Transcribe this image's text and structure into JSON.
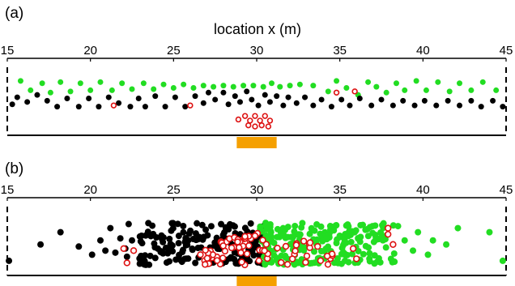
{
  "chart_data": [
    {
      "type": "scatter",
      "panel_label": "(a)",
      "xlabel": "location x (m)",
      "xlim": [
        15,
        45
      ],
      "xticks": [
        15,
        20,
        25,
        30,
        35,
        40,
        45
      ],
      "source_bar": {
        "x_start": 28.8,
        "x_end": 31.2,
        "color": "#f5a000"
      },
      "series": [
        {
          "style": "filled",
          "color": "#22dd22",
          "points": [
            [
              15.8,
              1.2
            ],
            [
              16.4,
              0.8
            ],
            [
              17.1,
              1.1
            ],
            [
              17.6,
              0.7
            ],
            [
              18.2,
              1.15
            ],
            [
              18.8,
              0.75
            ],
            [
              19.4,
              1.1
            ],
            [
              20.0,
              0.8
            ],
            [
              20.6,
              1.15
            ],
            [
              21.3,
              0.8
            ],
            [
              21.9,
              1.1
            ],
            [
              22.5,
              0.85
            ],
            [
              23.2,
              1.1
            ],
            [
              23.8,
              0.85
            ],
            [
              24.4,
              1.05
            ],
            [
              25.0,
              0.9
            ],
            [
              25.6,
              1.05
            ],
            [
              26.2,
              0.9
            ],
            [
              26.8,
              1.0
            ],
            [
              27.4,
              0.95
            ],
            [
              28.0,
              1.0
            ],
            [
              28.6,
              0.95
            ],
            [
              29.2,
              1.0
            ],
            [
              29.8,
              1.0
            ],
            [
              30.4,
              0.95
            ],
            [
              30.9,
              1.1
            ],
            [
              31.4,
              0.95
            ],
            [
              32.0,
              1.0
            ],
            [
              32.6,
              1.05
            ],
            [
              33.4,
              1.0
            ],
            [
              34.3,
              0.75
            ],
            [
              34.8,
              1.2
            ],
            [
              35.4,
              0.9
            ],
            [
              36.1,
              0.6
            ],
            [
              36.7,
              1.15
            ],
            [
              37.2,
              0.95
            ],
            [
              37.8,
              0.7
            ],
            [
              38.4,
              1.1
            ],
            [
              38.9,
              0.8
            ],
            [
              39.6,
              1.2
            ],
            [
              40.2,
              0.8
            ],
            [
              40.9,
              1.15
            ],
            [
              41.6,
              0.75
            ],
            [
              42.2,
              1.1
            ],
            [
              42.9,
              0.8
            ],
            [
              43.6,
              1.15
            ],
            [
              44.4,
              0.8
            ]
          ]
        },
        {
          "style": "filled",
          "color": "#000000",
          "points": [
            [
              15.3,
              0.2
            ],
            [
              15.6,
              0.5
            ],
            [
              16.2,
              0.3
            ],
            [
              16.8,
              0.6
            ],
            [
              17.4,
              0.35
            ],
            [
              18.0,
              0.1
            ],
            [
              18.6,
              0.45
            ],
            [
              19.3,
              0.1
            ],
            [
              19.9,
              0.45
            ],
            [
              20.5,
              0.1
            ],
            [
              21.1,
              0.5
            ],
            [
              21.7,
              0.25
            ],
            [
              22.4,
              0.1
            ],
            [
              22.9,
              0.45
            ],
            [
              23.3,
              0.1
            ],
            [
              23.9,
              0.55
            ],
            [
              24.5,
              0.1
            ],
            [
              25.1,
              0.5
            ],
            [
              25.7,
              0.1
            ],
            [
              26.3,
              0.55
            ],
            [
              26.8,
              0.25
            ],
            [
              27.1,
              0.7
            ],
            [
              27.5,
              0.4
            ],
            [
              28.0,
              0.7
            ],
            [
              28.3,
              0.2
            ],
            [
              28.7,
              0.55
            ],
            [
              29.0,
              0.3
            ],
            [
              29.4,
              0.75
            ],
            [
              29.7,
              0.4
            ],
            [
              30.1,
              0.15
            ],
            [
              30.5,
              0.6
            ],
            [
              30.8,
              0.3
            ],
            [
              31.2,
              0.55
            ],
            [
              31.6,
              0.15
            ],
            [
              31.9,
              0.5
            ],
            [
              32.4,
              0.25
            ],
            [
              32.9,
              0.5
            ],
            [
              33.4,
              0.15
            ],
            [
              33.9,
              0.4
            ],
            [
              34.5,
              0.1
            ],
            [
              35.1,
              0.4
            ],
            [
              35.6,
              0.15
            ],
            [
              36.2,
              0.45
            ],
            [
              36.9,
              0.15
            ],
            [
              37.5,
              0.4
            ],
            [
              38.2,
              0.15
            ],
            [
              38.8,
              0.35
            ],
            [
              39.5,
              0.15
            ],
            [
              40.1,
              0.35
            ],
            [
              40.8,
              0.15
            ],
            [
              41.5,
              0.35
            ],
            [
              42.2,
              0.15
            ],
            [
              42.9,
              0.35
            ],
            [
              43.5,
              0.1
            ],
            [
              44.2,
              0.35
            ],
            [
              44.8,
              0.1
            ]
          ]
        },
        {
          "style": "open",
          "color": "#dd1111",
          "points": [
            [
              21.4,
              0.15
            ],
            [
              26.0,
              0.15
            ],
            [
              28.9,
              -0.45
            ],
            [
              29.3,
              -0.3
            ],
            [
              29.6,
              -0.5
            ],
            [
              29.9,
              -0.3
            ],
            [
              30.2,
              -0.5
            ],
            [
              30.5,
              -0.3
            ],
            [
              30.8,
              -0.5
            ],
            [
              29.5,
              -0.7
            ],
            [
              29.9,
              -0.75
            ],
            [
              30.3,
              -0.7
            ],
            [
              30.7,
              -0.75
            ],
            [
              34.8,
              0.7
            ],
            [
              35.9,
              0.75
            ]
          ]
        }
      ]
    },
    {
      "type": "scatter",
      "panel_label": "(b)",
      "xlabel": "",
      "xlim": [
        15,
        45
      ],
      "xticks": [
        15,
        20,
        25,
        30,
        35,
        40,
        45
      ],
      "source_bar": {
        "x_start": 28.8,
        "x_end": 31.2,
        "color": "#f5a000"
      },
      "generated": [
        {
          "color": "#000000",
          "style": "filled",
          "x_range": [
            22.8,
            30.5
          ],
          "count": 170,
          "seed": 11
        },
        {
          "color": "#22dd22",
          "style": "filled",
          "x_range": [
            30.2,
            38.3
          ],
          "count": 210,
          "seed": 23
        },
        {
          "color": "#dd1111",
          "style": "open",
          "x_range": [
            26.5,
            35.0
          ],
          "count": 75,
          "seed": 37
        }
      ],
      "series": [
        {
          "style": "filled",
          "color": "#000000",
          "points": [
            [
              15.1,
              0.05
            ],
            [
              17.0,
              0.45
            ],
            [
              18.2,
              0.75
            ],
            [
              19.3,
              0.4
            ],
            [
              20.1,
              0.2
            ],
            [
              20.6,
              0.55
            ],
            [
              20.9,
              0.3
            ],
            [
              21.2,
              0.85
            ],
            [
              21.5,
              0.25
            ],
            [
              21.8,
              0.6
            ],
            [
              22.1,
              0.35
            ],
            [
              22.3,
              0.95
            ],
            [
              22.5,
              0.55
            ],
            [
              22.2,
              0.15
            ]
          ]
        },
        {
          "style": "filled",
          "color": "#22dd22",
          "points": [
            [
              38.5,
              0.9
            ],
            [
              38.9,
              0.55
            ],
            [
              39.4,
              0.3
            ],
            [
              39.7,
              0.75
            ],
            [
              40.3,
              0.2
            ],
            [
              40.6,
              0.55
            ],
            [
              41.4,
              0.45
            ],
            [
              42.1,
              0.85
            ],
            [
              44.0,
              0.75
            ],
            [
              44.8,
              0.05
            ]
          ]
        },
        {
          "style": "open",
          "color": "#dd1111",
          "points": [
            [
              22.0,
              0.35
            ],
            [
              22.6,
              0.3
            ],
            [
              22.2,
              0.0
            ],
            [
              35.8,
              0.35
            ],
            [
              36.0,
              0.1
            ],
            [
              37.9,
              0.7
            ],
            [
              37.9,
              0.85
            ],
            [
              38.2,
              0.45
            ]
          ]
        }
      ]
    }
  ]
}
